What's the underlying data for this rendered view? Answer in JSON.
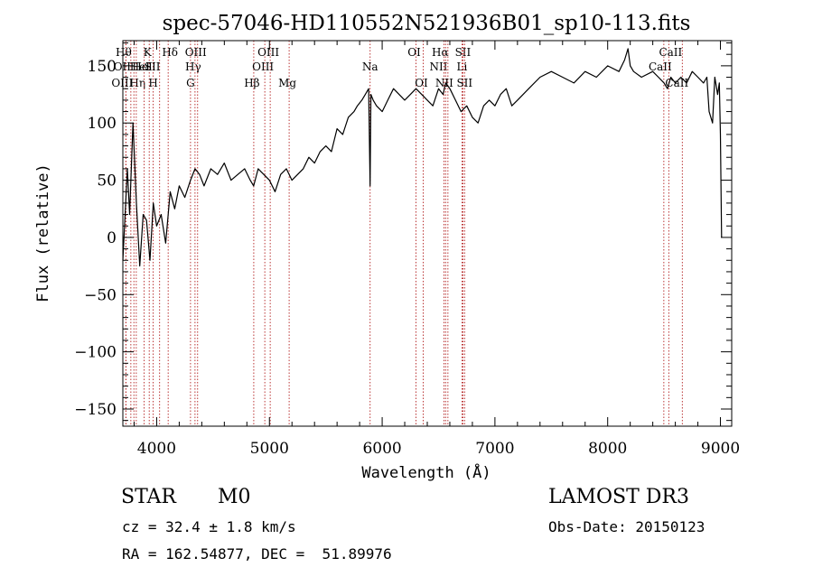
{
  "chart_data": {
    "type": "line",
    "title": "spec-57046-HD110552N521936B01_sp10-113.fits",
    "xlabel": "Wavelength (Å)",
    "ylabel": "Flux (relative)",
    "xlim": [
      3700,
      9100
    ],
    "ylim": [
      -165,
      172
    ],
    "x_ticks": [
      4000,
      5000,
      6000,
      7000,
      8000,
      9000
    ],
    "x_tick_labels": [
      "4000",
      "5000",
      "6000",
      "7000",
      "8000",
      "9000"
    ],
    "y_ticks": [
      -150,
      -100,
      -50,
      0,
      50,
      100,
      150
    ],
    "y_tick_labels": [
      "−150",
      "−100",
      "−50",
      "0",
      "50",
      "100",
      "150"
    ],
    "grid": false,
    "series": [
      {
        "color": "#000000",
        "x": [
          3700,
          3740,
          3760,
          3790,
          3820,
          3850,
          3880,
          3910,
          3940,
          3970,
          4000,
          4040,
          4080,
          4120,
          4160,
          4200,
          4250,
          4300,
          4340,
          4380,
          4420,
          4480,
          4540,
          4600,
          4660,
          4720,
          4780,
          4830,
          4860,
          4900,
          4950,
          5000,
          5050,
          5100,
          5150,
          5200,
          5250,
          5300,
          5350,
          5400,
          5450,
          5500,
          5550,
          5600,
          5650,
          5700,
          5750,
          5780,
          5820,
          5850,
          5880,
          5893,
          5900,
          5920,
          5950,
          6000,
          6050,
          6100,
          6150,
          6200,
          6250,
          6300,
          6350,
          6400,
          6450,
          6500,
          6540,
          6563,
          6600,
          6650,
          6700,
          6750,
          6800,
          6850,
          6900,
          6950,
          7000,
          7050,
          7100,
          7150,
          7200,
          7250,
          7300,
          7400,
          7500,
          7600,
          7700,
          7800,
          7900,
          8000,
          8100,
          8150,
          8180,
          8200,
          8230,
          8300,
          8400,
          8450,
          8500,
          8530,
          8560,
          8600,
          8650,
          8700,
          8750,
          8800,
          8850,
          8880,
          8900,
          8930,
          8950,
          8975,
          8990,
          9000,
          9010
        ],
        "values": [
          -20,
          60,
          20,
          100,
          30,
          -25,
          20,
          15,
          -20,
          30,
          10,
          20,
          -5,
          40,
          25,
          45,
          35,
          50,
          60,
          55,
          45,
          60,
          55,
          65,
          50,
          55,
          60,
          50,
          45,
          60,
          55,
          50,
          40,
          55,
          60,
          50,
          55,
          60,
          70,
          65,
          75,
          80,
          75,
          95,
          90,
          105,
          110,
          115,
          120,
          125,
          130,
          45,
          125,
          120,
          115,
          110,
          120,
          130,
          125,
          120,
          125,
          130,
          125,
          120,
          115,
          130,
          125,
          135,
          130,
          120,
          110,
          115,
          105,
          100,
          115,
          120,
          115,
          125,
          130,
          115,
          120,
          125,
          130,
          140,
          145,
          140,
          135,
          145,
          140,
          150,
          145,
          155,
          165,
          150,
          145,
          140,
          145,
          140,
          135,
          130,
          140,
          135,
          140,
          135,
          145,
          140,
          135,
          140,
          110,
          100,
          140,
          125,
          135,
          90,
          0
        ]
      }
    ],
    "lines": [
      {
        "x": 3771,
        "label": "Hθ",
        "row": 1,
        "dx": -8
      },
      {
        "x": 3727,
        "label": "OII",
        "row": 2,
        "dx": -4
      },
      {
        "x": 3727,
        "label": "OIII",
        "row": 3,
        "dx": -4
      },
      {
        "x": 3798,
        "label": "Hη",
        "row": 3,
        "dx": 4
      },
      {
        "x": 3819,
        "label": "HeI",
        "row": 2,
        "dx": 4
      },
      {
        "x": 3889,
        "label": "HeI",
        "row": 2,
        "dx": -2
      },
      {
        "x": 3934,
        "label": "K",
        "row": 1,
        "dx": -2
      },
      {
        "x": 3969,
        "label": "H",
        "row": 3,
        "dx": 0
      },
      {
        "x": 4026,
        "label": "SII",
        "row": 2,
        "dx": -8
      },
      {
        "x": 4102,
        "label": "Hδ",
        "row": 1,
        "dx": 2
      },
      {
        "x": 4300,
        "label": "G",
        "row": 3,
        "dx": 0
      },
      {
        "x": 4340,
        "label": "Hγ",
        "row": 2,
        "dx": -2
      },
      {
        "x": 4363,
        "label": "OIII",
        "row": 1,
        "dx": -2
      },
      {
        "x": 4861,
        "label": "Hβ",
        "row": 3,
        "dx": -2
      },
      {
        "x": 4959,
        "label": "OIII",
        "row": 2,
        "dx": -2
      },
      {
        "x": 5007,
        "label": "OIII",
        "row": 1,
        "dx": -2
      },
      {
        "x": 5175,
        "label": "Mg",
        "row": 3,
        "dx": -2
      },
      {
        "x": 5893,
        "label": "Na",
        "row": 2,
        "dx": 0
      },
      {
        "x": 6300,
        "label": "OI",
        "row": 1,
        "dx": -2
      },
      {
        "x": 6364,
        "label": "OI",
        "row": 3,
        "dx": -2
      },
      {
        "x": 6548,
        "label": "NII",
        "row": 2,
        "dx": -6
      },
      {
        "x": 6563,
        "label": "Hα",
        "row": 1,
        "dx": -6
      },
      {
        "x": 6583,
        "label": "NII",
        "row": 3,
        "dx": -4
      },
      {
        "x": 6708,
        "label": "Li",
        "row": 2,
        "dx": 0
      },
      {
        "x": 6716,
        "label": "SII",
        "row": 1,
        "dx": 0
      },
      {
        "x": 6731,
        "label": "SII",
        "row": 3,
        "dx": 0
      },
      {
        "x": 8498,
        "label": "CaII",
        "row": 2,
        "dx": -4
      },
      {
        "x": 8542,
        "label": "CaII",
        "row": 1,
        "dx": 2
      },
      {
        "x": 8662,
        "label": "CaII",
        "row": 3,
        "dx": -6
      }
    ]
  },
  "info": {
    "class_label": "STAR",
    "subclass": "M0",
    "survey": "LAMOST DR3",
    "redshift": "cz = 32.4 ± 1.8 km/s",
    "obs_date": "Obs-Date: 20150123",
    "coords": "RA = 162.54877, DEC =  51.89976"
  }
}
